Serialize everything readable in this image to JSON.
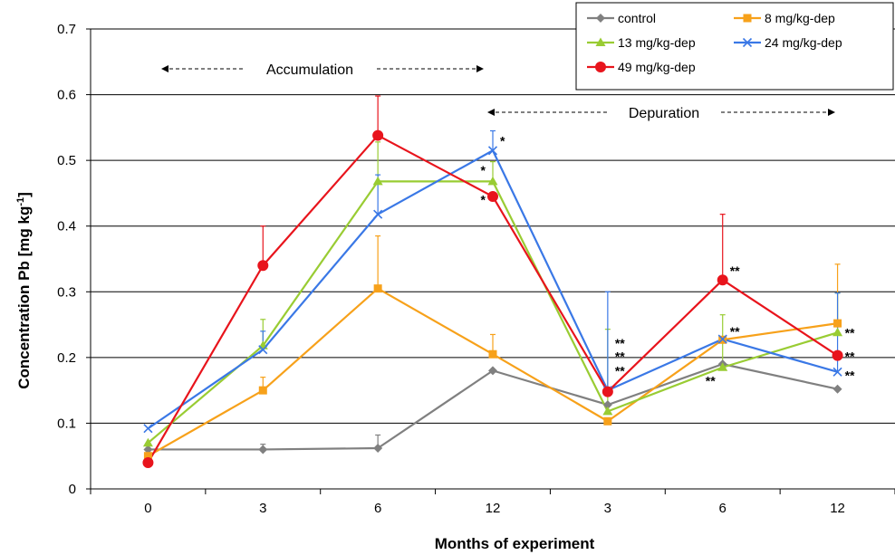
{
  "chart_data": {
    "type": "line",
    "title": "",
    "xlabel": "Months of experiment",
    "ylabel_main": "Concentration Pb [mg kg",
    "ylabel_sup": "-1",
    "ylabel_tail": "]",
    "categories": [
      "0",
      "3",
      "6",
      "12",
      "3",
      "6",
      "12"
    ],
    "ylim": [
      0,
      0.7
    ],
    "yticks": [
      "0",
      "0.1",
      "0.2",
      "0.3",
      "0.4",
      "0.5",
      "0.6",
      "0.7"
    ],
    "grid": "horizontal",
    "legend_position": "top-right",
    "annotations": {
      "accumulation": "Accumulation",
      "depuration": "Depuration"
    },
    "series": [
      {
        "name": "control",
        "color": "#808080",
        "marker": "diamond",
        "values": [
          0.06,
          0.06,
          0.062,
          0.18,
          0.128,
          0.19,
          0.152
        ],
        "errors": [
          0.0,
          0.008,
          0.02,
          0.0,
          0.0,
          0.0,
          0.0
        ]
      },
      {
        "name": "8 mg/kg-dep",
        "color": "#F7A11A",
        "marker": "square",
        "values": [
          0.05,
          0.15,
          0.305,
          0.205,
          0.103,
          0.227,
          0.252
        ],
        "errors": [
          0.0,
          0.02,
          0.08,
          0.03,
          0.0,
          0.0,
          0.09
        ]
      },
      {
        "name": "13 mg/kg-dep",
        "color": "#99CC33",
        "marker": "triangle",
        "values": [
          0.07,
          0.218,
          0.468,
          0.468,
          0.118,
          0.185,
          0.238
        ],
        "errors": [
          0.0,
          0.04,
          0.06,
          0.03,
          0.125,
          0.08,
          0.06
        ]
      },
      {
        "name": "24 mg/kg-dep",
        "color": "#3A78E6",
        "marker": "x",
        "values": [
          0.092,
          0.212,
          0.418,
          0.515,
          0.15,
          0.228,
          0.178
        ],
        "errors": [
          0.0,
          0.028,
          0.06,
          0.03,
          0.15,
          0.0,
          0.12
        ]
      },
      {
        "name": "49 mg/kg-dep",
        "color": "#E8141C",
        "marker": "circle",
        "values": [
          0.04,
          0.34,
          0.538,
          0.445,
          0.148,
          0.318,
          0.203
        ],
        "errors": [
          0.0,
          0.06,
          0.06,
          0.0,
          0.0,
          0.1,
          0.0
        ]
      }
    ],
    "significance": [
      {
        "text": "*",
        "x_index": 3,
        "y": 0.53,
        "side": "right"
      },
      {
        "text": "*",
        "x_index": 3,
        "y": 0.485,
        "side": "left"
      },
      {
        "text": "*",
        "x_index": 3,
        "y": 0.44,
        "side": "left"
      },
      {
        "text": "**",
        "x_index": 4,
        "y": 0.222,
        "side": "right"
      },
      {
        "text": "**",
        "x_index": 4,
        "y": 0.202,
        "side": "right"
      },
      {
        "text": "**",
        "x_index": 4,
        "y": 0.18,
        "side": "right"
      },
      {
        "text": "**",
        "x_index": 5,
        "y": 0.332,
        "side": "right"
      },
      {
        "text": "**",
        "x_index": 5,
        "y": 0.24,
        "side": "right"
      },
      {
        "text": "**",
        "x_index": 5,
        "y": 0.165,
        "side": "left"
      },
      {
        "text": "**",
        "x_index": 6,
        "y": 0.238,
        "side": "right"
      },
      {
        "text": "**",
        "x_index": 6,
        "y": 0.202,
        "side": "right"
      },
      {
        "text": "**",
        "x_index": 6,
        "y": 0.173,
        "side": "right"
      }
    ]
  }
}
